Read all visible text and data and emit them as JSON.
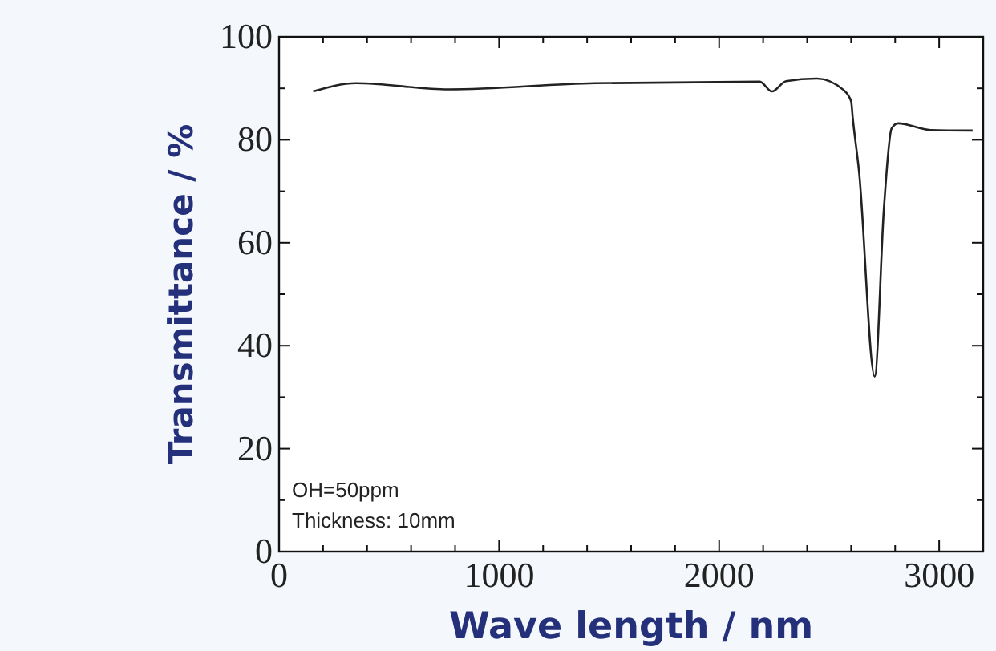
{
  "chart_data": {
    "type": "line",
    "xlabel": "Wave length / nm",
    "ylabel": "Transmittance / %",
    "annotations": [
      "OH=50ppm",
      "Thickness: 10mm"
    ],
    "xlim": [
      0,
      3200
    ],
    "ylim": [
      0,
      100
    ],
    "xticks": [
      0,
      {
        "value": 200,
        "label": null
      },
      {
        "value": 400,
        "label": null
      },
      {
        "value": 600,
        "label": null
      },
      {
        "value": 800,
        "label": null
      },
      1000,
      {
        "value": 1200,
        "label": null
      },
      {
        "value": 1400,
        "label": null
      },
      {
        "value": 1600,
        "label": null
      },
      {
        "value": 1800,
        "label": null
      },
      2000,
      {
        "value": 2200,
        "label": null
      },
      {
        "value": 2400,
        "label": null
      },
      {
        "value": 2600,
        "label": null
      },
      {
        "value": 2800,
        "label": null
      },
      3000
    ],
    "yticks": [
      0,
      {
        "value": 10,
        "label": null
      },
      20,
      {
        "value": 30,
        "label": null
      },
      40,
      {
        "value": 50,
        "label": null
      },
      60,
      {
        "value": 70,
        "label": null
      },
      80,
      {
        "value": 90,
        "label": null
      },
      100
    ],
    "grid": false,
    "series": [
      {
        "color": "#222222",
        "x": [
          155,
          350,
          770,
          1435,
          2185,
          2240,
          2304,
          2445,
          2565,
          2600,
          2607,
          2636,
          2707,
          2749,
          2784,
          2813,
          2961,
          3152
        ],
        "values": [
          89.4,
          91,
          89.8,
          91,
          91.3,
          89.4,
          91.4,
          91.9,
          89.7,
          87.5,
          84.4,
          73.8,
          34,
          66.7,
          82.2,
          83.2,
          81.9,
          81.8
        ]
      }
    ]
  }
}
